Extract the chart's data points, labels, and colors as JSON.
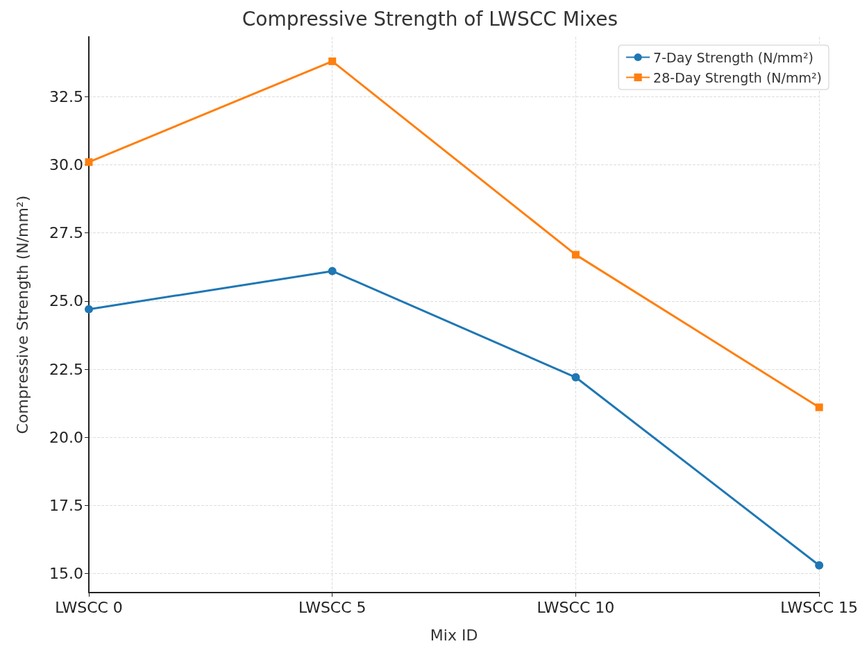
{
  "chart_data": {
    "type": "line",
    "title": "Compressive Strength of LWSCC Mixes",
    "xlabel": "Mix ID",
    "ylabel": "Compressive Strength (N/mm²)",
    "categories": [
      "LWSCC 0",
      "LWSCC 5",
      "LWSCC 10",
      "LWSCC 15"
    ],
    "series": [
      {
        "name": "7-Day Strength (N/mm²)",
        "color": "#1f77b4",
        "marker": "circle",
        "values": [
          24.7,
          26.1,
          22.2,
          15.3
        ]
      },
      {
        "name": "28-Day Strength (N/mm²)",
        "color": "#ff7f0e",
        "marker": "square",
        "values": [
          30.1,
          33.8,
          26.7,
          21.1
        ]
      }
    ],
    "ylim": [
      14.3,
      34.7
    ],
    "yticks": [
      {
        "value": 15,
        "label": "15.0"
      },
      {
        "value": 17.5,
        "label": "17.5"
      },
      {
        "value": 20,
        "label": "20.0"
      },
      {
        "value": 22.5,
        "label": "22.5"
      },
      {
        "value": 25,
        "label": "25.0"
      },
      {
        "value": 27.5,
        "label": "27.5"
      },
      {
        "value": 30,
        "label": "30.0"
      },
      {
        "value": 32.5,
        "label": "32.5"
      }
    ],
    "grid": true,
    "legend": "top right",
    "line_style": "solid"
  }
}
